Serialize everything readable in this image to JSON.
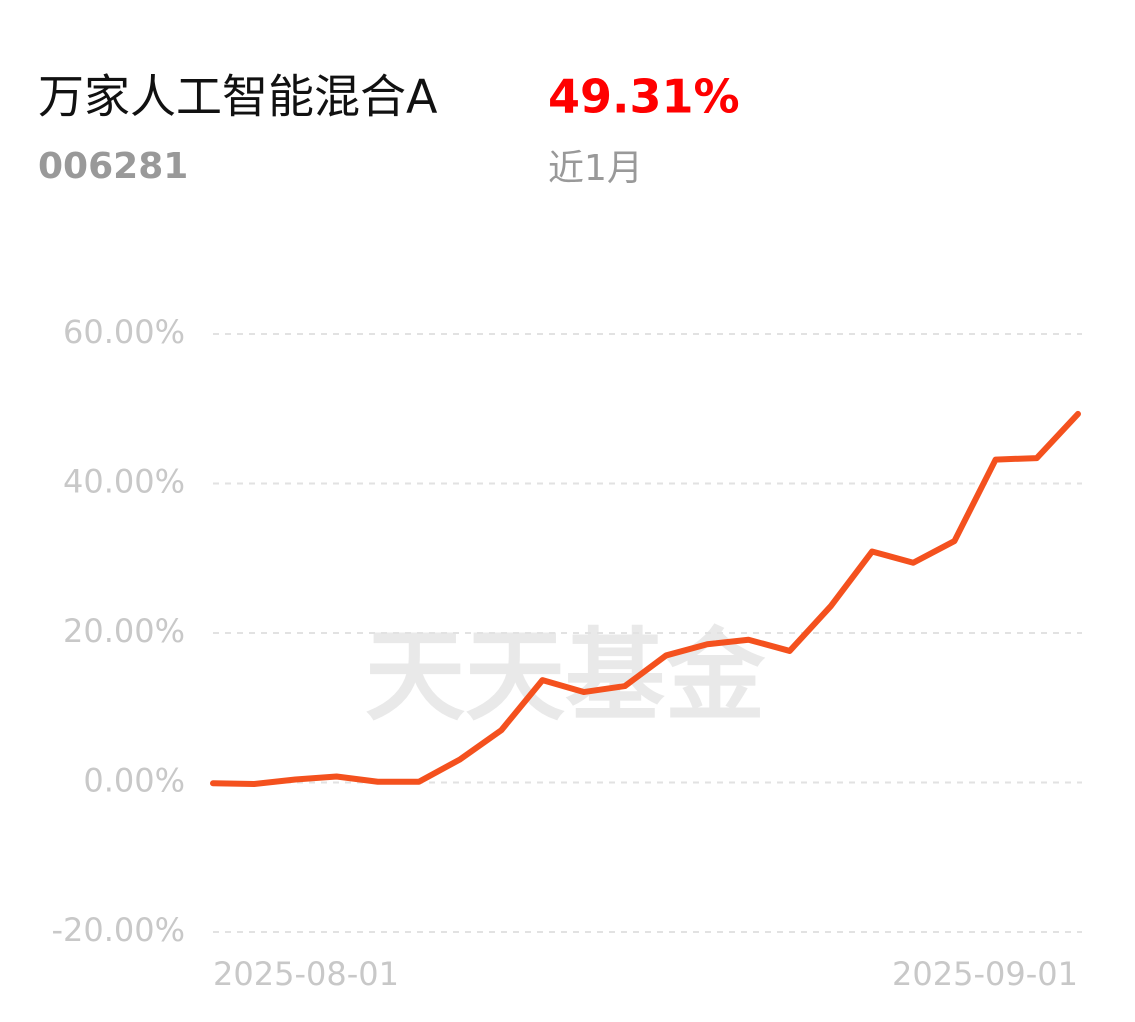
{
  "header": {
    "title": "万家人工智能混合A",
    "return": "49.31%",
    "code": "006281",
    "period": "近1月"
  },
  "chart_data": {
    "type": "line",
    "watermark": "天天基金",
    "categories": [
      "2025-08-01",
      null,
      null,
      null,
      null,
      null,
      null,
      null,
      null,
      null,
      null,
      null,
      null,
      null,
      null,
      null,
      null,
      null,
      null,
      null,
      null,
      "2025-09-01"
    ],
    "series": [
      {
        "name": "万家人工智能混合A",
        "color": "#f4511e",
        "values": [
          -0.1,
          -0.2,
          0.4,
          0.8,
          0.1,
          0.1,
          3.1,
          7.0,
          13.7,
          12.1,
          12.9,
          17.0,
          18.5,
          19.1,
          17.6,
          23.6,
          30.9,
          29.4,
          32.3,
          43.2,
          43.4,
          49.31
        ]
      }
    ],
    "ylim": [
      -20,
      60
    ],
    "yticks": [
      {
        "value": -20,
        "label": "-20.00%"
      },
      {
        "value": 0,
        "label": "0.00%"
      },
      {
        "value": 20,
        "label": "20.00%"
      },
      {
        "value": 40,
        "label": "40.00%"
      },
      {
        "value": 60,
        "label": "60.00%"
      }
    ],
    "grid": true
  }
}
